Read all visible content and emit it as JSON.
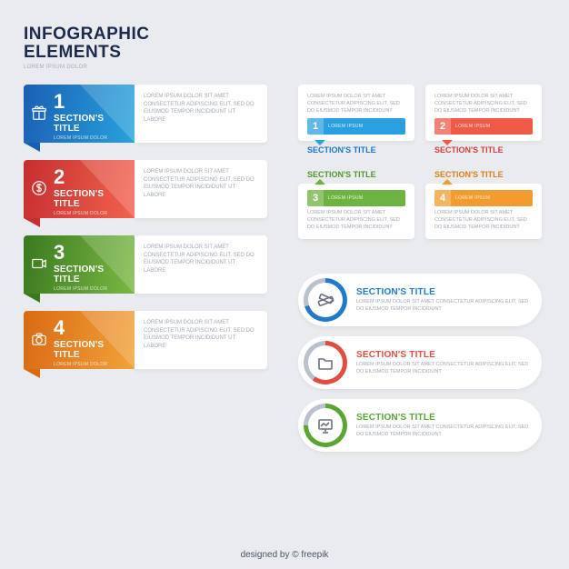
{
  "header": {
    "title_line1": "INFOGRAPHIC",
    "title_line2": "ELEMENTS",
    "subtitle": "LOREM IPSUM DOLOR"
  },
  "lorem_short": "LOREM IPSUM DOLOR SIT AMET CONSECTETUR ADIPISCING ELIT, SED DO EIUSMOD TEMPOR INCIDIDUNT",
  "lorem_long": "LOREM IPSUM DOLOR SIT AMET CONSECTETUR ADIPISCING ELIT, SED DO EIUSMOD TEMPOR INCIDIDUNT UT LABORE",
  "section_label": "SECTION'S TITLE",
  "section_sub": "LOREM IPSUM DOLOR",
  "tip_sublabel": "LOREM IPSUM",
  "left_tabs": [
    {
      "num": "1",
      "color_a": "#1b5fb4",
      "color_b": "#27a3dd",
      "tail": "#1b5fb4",
      "icon": "gift"
    },
    {
      "num": "2",
      "color_a": "#c52f2f",
      "color_b": "#f2624d",
      "tail": "#c52f2f",
      "icon": "dollar"
    },
    {
      "num": "3",
      "color_a": "#3a7a1f",
      "color_b": "#7ab843",
      "tail": "#3a7a1f",
      "icon": "video"
    },
    {
      "num": "4",
      "color_a": "#d96a14",
      "color_b": "#f2a23a",
      "tail": "#d96a14",
      "icon": "camera"
    }
  ],
  "tips": [
    {
      "num": "1",
      "color": "#2aa0e0",
      "ttl_color": "#1b78c9",
      "dir": "down"
    },
    {
      "num": "2",
      "color": "#ef5a46",
      "ttl_color": "#d63f3f",
      "dir": "down"
    },
    {
      "num": "3",
      "color": "#6cb33f",
      "ttl_color": "#4f9a2c",
      "dir": "up"
    },
    {
      "num": "4",
      "color": "#f29b2e",
      "ttl_color": "#e07e16",
      "dir": "up"
    }
  ],
  "pills": [
    {
      "ring_a": "#1f7bc9",
      "ring_b": "#b9c2cc",
      "txt": "#1f7bc9",
      "icon": "ruler",
      "pct": 70
    },
    {
      "ring_a": "#e24d3f",
      "ring_b": "#b9c2cc",
      "txt": "#e24d3f",
      "icon": "folder",
      "pct": 60
    },
    {
      "ring_a": "#5aa533",
      "ring_b": "#b9c2cc",
      "txt": "#5aa533",
      "icon": "board",
      "pct": 75
    }
  ],
  "footer": "designed by © freepik"
}
